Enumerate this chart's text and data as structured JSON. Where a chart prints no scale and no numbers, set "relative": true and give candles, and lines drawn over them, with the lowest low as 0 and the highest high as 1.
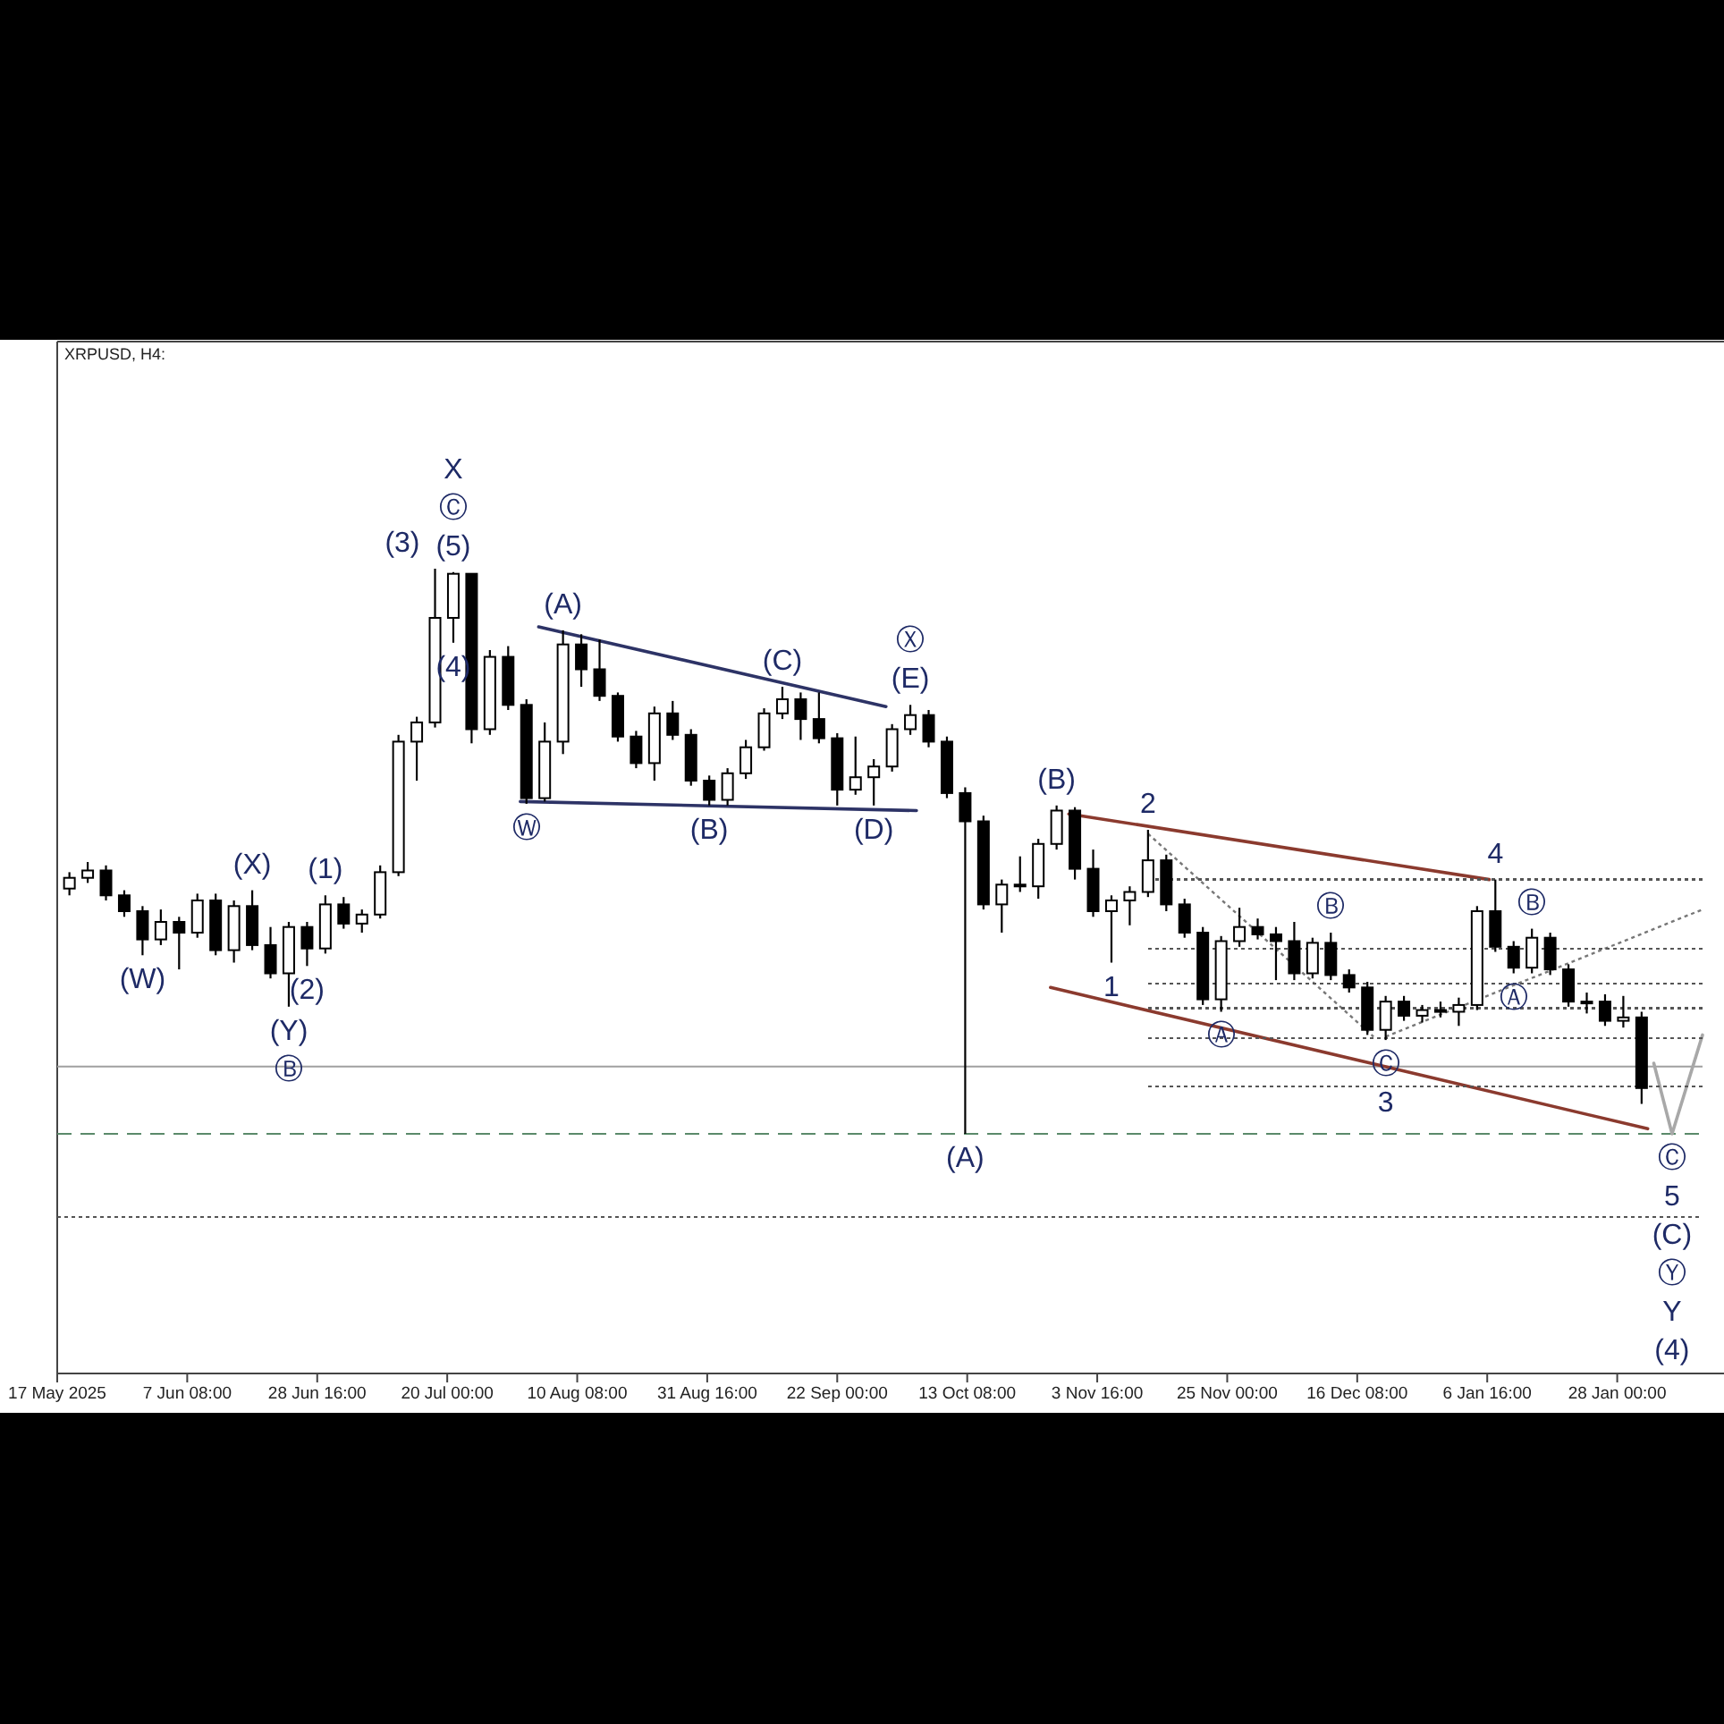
{
  "chart_data": {
    "type": "candlestick",
    "title": "XRPUSD, H4:",
    "relative": true,
    "color": "#000000",
    "xlim": [
      "2025-05-17",
      "2026-02-11"
    ],
    "xticks": [
      {
        "value": "2025-05-17T00:00",
        "label": "17 May 2025"
      },
      {
        "value": "2025-06-07T08:00",
        "label": "7 Jun 08:00"
      },
      {
        "value": "2025-06-28T16:00",
        "label": "28 Jun 16:00"
      },
      {
        "value": "2025-07-20T00:00",
        "label": "20 Jul 00:00"
      },
      {
        "value": "2025-08-10T08:00",
        "label": "10 Aug 08:00"
      },
      {
        "value": "2025-08-31T16:00",
        "label": "31 Aug 16:00"
      },
      {
        "value": "2025-09-22T00:00",
        "label": "22 Sep 00:00"
      },
      {
        "value": "2025-10-13T08:00",
        "label": "13 Oct 08:00"
      },
      {
        "value": "2025-11-03T16:00",
        "label": "3 Nov 16:00"
      },
      {
        "value": "2025-11-25T00:00",
        "label": "25 Nov 00:00"
      },
      {
        "value": "2025-12-16T08:00",
        "label": "16 Dec 08:00"
      },
      {
        "value": "2026-01-06T16:00",
        "label": "6 Jan 16:00"
      },
      {
        "value": "2026-01-28T00:00",
        "label": "28 Jan 00:00"
      }
    ],
    "x": [
      "2025-05-19",
      "2025-05-22",
      "2025-05-25",
      "2025-05-28",
      "2025-05-31",
      "2025-06-03",
      "2025-06-06",
      "2025-06-09",
      "2025-06-12",
      "2025-06-15",
      "2025-06-18",
      "2025-06-21",
      "2025-06-24",
      "2025-06-27",
      "2025-06-30",
      "2025-07-03",
      "2025-07-06",
      "2025-07-09",
      "2025-07-12",
      "2025-07-15",
      "2025-07-18",
      "2025-07-21",
      "2025-07-24",
      "2025-07-27",
      "2025-07-30",
      "2025-08-02",
      "2025-08-05",
      "2025-08-08",
      "2025-08-11",
      "2025-08-14",
      "2025-08-17",
      "2025-08-20",
      "2025-08-23",
      "2025-08-26",
      "2025-08-29",
      "2025-09-01",
      "2025-09-04",
      "2025-09-07",
      "2025-09-10",
      "2025-09-13",
      "2025-09-16",
      "2025-09-19",
      "2025-09-22",
      "2025-09-25",
      "2025-09-28",
      "2025-10-01",
      "2025-10-04",
      "2025-10-07",
      "2025-10-10",
      "2025-10-13",
      "2025-10-16",
      "2025-10-19",
      "2025-10-22",
      "2025-10-25",
      "2025-10-28",
      "2025-10-31",
      "2025-11-03",
      "2025-11-06",
      "2025-11-09",
      "2025-11-12",
      "2025-11-15",
      "2025-11-18",
      "2025-11-21",
      "2025-11-24",
      "2025-11-27",
      "2025-11-30",
      "2025-12-03",
      "2025-12-06",
      "2025-12-09",
      "2025-12-12",
      "2025-12-15",
      "2025-12-18",
      "2025-12-21",
      "2025-12-24",
      "2025-12-27",
      "2025-12-30",
      "2026-01-02",
      "2026-01-05",
      "2026-01-08",
      "2026-01-11",
      "2026-01-14",
      "2026-01-17",
      "2026-01-20",
      "2026-01-23",
      "2026-01-26",
      "2026-01-29",
      "2026-02-01"
    ],
    "ohlc": [
      [
        0.434,
        0.463,
        0.422,
        0.453
      ],
      [
        0.453,
        0.481,
        0.444,
        0.466
      ],
      [
        0.466,
        0.475,
        0.413,
        0.422
      ],
      [
        0.422,
        0.431,
        0.384,
        0.394
      ],
      [
        0.394,
        0.403,
        0.316,
        0.344
      ],
      [
        0.344,
        0.397,
        0.334,
        0.375
      ],
      [
        0.375,
        0.384,
        0.291,
        0.356
      ],
      [
        0.356,
        0.425,
        0.347,
        0.413
      ],
      [
        0.413,
        0.425,
        0.316,
        0.325
      ],
      [
        0.325,
        0.413,
        0.303,
        0.403
      ],
      [
        0.403,
        0.431,
        0.325,
        0.334
      ],
      [
        0.334,
        0.366,
        0.275,
        0.284
      ],
      [
        0.284,
        0.375,
        0.225,
        0.366
      ],
      [
        0.366,
        0.375,
        0.297,
        0.328
      ],
      [
        0.328,
        0.422,
        0.319,
        0.406
      ],
      [
        0.406,
        0.419,
        0.363,
        0.372
      ],
      [
        0.372,
        0.397,
        0.356,
        0.388
      ],
      [
        0.388,
        0.475,
        0.381,
        0.463
      ],
      [
        0.463,
        0.706,
        0.456,
        0.694
      ],
      [
        0.694,
        0.738,
        0.625,
        0.728
      ],
      [
        0.728,
        1.0,
        0.719,
        0.913
      ],
      [
        0.913,
        0.994,
        0.869,
        0.991
      ],
      [
        0.991,
        0.991,
        0.691,
        0.716
      ],
      [
        0.716,
        0.856,
        0.706,
        0.844
      ],
      [
        0.844,
        0.863,
        0.75,
        0.759
      ],
      [
        0.759,
        0.769,
        0.584,
        0.594
      ],
      [
        0.594,
        0.728,
        0.588,
        0.694
      ],
      [
        0.694,
        0.891,
        0.672,
        0.866
      ],
      [
        0.866,
        0.884,
        0.791,
        0.822
      ],
      [
        0.822,
        0.875,
        0.766,
        0.775
      ],
      [
        0.775,
        0.781,
        0.694,
        0.703
      ],
      [
        0.703,
        0.713,
        0.647,
        0.656
      ],
      [
        0.656,
        0.756,
        0.625,
        0.744
      ],
      [
        0.744,
        0.766,
        0.697,
        0.706
      ],
      [
        0.706,
        0.716,
        0.616,
        0.625
      ],
      [
        0.625,
        0.634,
        0.581,
        0.591
      ],
      [
        0.591,
        0.647,
        0.581,
        0.638
      ],
      [
        0.638,
        0.697,
        0.628,
        0.684
      ],
      [
        0.684,
        0.753,
        0.678,
        0.744
      ],
      [
        0.744,
        0.791,
        0.734,
        0.769
      ],
      [
        0.769,
        0.781,
        0.697,
        0.734
      ],
      [
        0.734,
        0.781,
        0.691,
        0.7
      ],
      [
        0.7,
        0.709,
        0.581,
        0.609
      ],
      [
        0.609,
        0.703,
        0.6,
        0.631
      ],
      [
        0.631,
        0.663,
        0.581,
        0.65
      ],
      [
        0.65,
        0.725,
        0.641,
        0.716
      ],
      [
        0.716,
        0.759,
        0.706,
        0.741
      ],
      [
        0.741,
        0.75,
        0.684,
        0.694
      ],
      [
        0.694,
        0.703,
        0.594,
        0.603
      ],
      [
        0.603,
        0.613,
        0.0,
        0.553
      ],
      [
        0.553,
        0.563,
        0.397,
        0.406
      ],
      [
        0.406,
        0.45,
        0.356,
        0.441
      ],
      [
        0.441,
        0.491,
        0.428,
        0.438
      ],
      [
        0.438,
        0.522,
        0.416,
        0.513
      ],
      [
        0.513,
        0.581,
        0.503,
        0.572
      ],
      [
        0.572,
        0.578,
        0.45,
        0.469
      ],
      [
        0.469,
        0.503,
        0.384,
        0.394
      ],
      [
        0.394,
        0.422,
        0.303,
        0.413
      ],
      [
        0.413,
        0.438,
        0.369,
        0.428
      ],
      [
        0.428,
        0.538,
        0.419,
        0.484
      ],
      [
        0.484,
        0.494,
        0.394,
        0.406
      ],
      [
        0.406,
        0.416,
        0.347,
        0.356
      ],
      [
        0.356,
        0.366,
        0.228,
        0.238
      ],
      [
        0.238,
        0.35,
        0.216,
        0.341
      ],
      [
        0.341,
        0.4,
        0.331,
        0.366
      ],
      [
        0.366,
        0.381,
        0.344,
        0.353
      ],
      [
        0.353,
        0.366,
        0.272,
        0.341
      ],
      [
        0.341,
        0.375,
        0.272,
        0.284
      ],
      [
        0.284,
        0.347,
        0.275,
        0.338
      ],
      [
        0.338,
        0.356,
        0.272,
        0.281
      ],
      [
        0.281,
        0.291,
        0.25,
        0.259
      ],
      [
        0.259,
        0.269,
        0.175,
        0.184
      ],
      [
        0.184,
        0.244,
        0.166,
        0.234
      ],
      [
        0.234,
        0.244,
        0.2,
        0.209
      ],
      [
        0.209,
        0.228,
        0.197,
        0.219
      ],
      [
        0.219,
        0.234,
        0.206,
        0.216
      ],
      [
        0.216,
        0.241,
        0.191,
        0.228
      ],
      [
        0.228,
        0.403,
        0.219,
        0.394
      ],
      [
        0.394,
        0.45,
        0.322,
        0.331
      ],
      [
        0.331,
        0.341,
        0.284,
        0.294
      ],
      [
        0.294,
        0.363,
        0.284,
        0.347
      ],
      [
        0.347,
        0.356,
        0.281,
        0.291
      ],
      [
        0.291,
        0.3,
        0.225,
        0.234
      ],
      [
        0.234,
        0.25,
        0.213,
        0.234
      ],
      [
        0.234,
        0.247,
        0.191,
        0.2
      ],
      [
        0.2,
        0.244,
        0.188,
        0.206
      ],
      [
        0.206,
        0.216,
        0.053,
        0.081
      ]
    ],
    "series": [
      {
        "type": "line",
        "x": [
          "2025-08-04",
          "2025-09-30"
        ],
        "values": [
          0.897,
          0.756
        ],
        "color": "#2d3366",
        "line_style": "solid"
      },
      {
        "type": "line",
        "x": [
          "2025-08-01",
          "2025-10-05"
        ],
        "values": [
          0.588,
          0.572
        ],
        "color": "#2d3366",
        "line_style": "solid"
      },
      {
        "type": "line",
        "x": [
          "2025-10-30",
          "2026-01-07"
        ],
        "values": [
          0.566,
          0.45
        ],
        "color": "#8b3a2e",
        "line_style": "solid"
      },
      {
        "type": "line",
        "x": [
          "2025-10-27",
          "2026-02-02"
        ],
        "values": [
          0.259,
          0.009
        ],
        "color": "#8b3a2e",
        "line_style": "solid"
      },
      {
        "type": "line",
        "x": [
          "2025-11-12",
          "2025-12-19"
        ],
        "values": [
          0.531,
          0.172
        ],
        "color": "#777777",
        "line_style": "dotted"
      },
      {
        "type": "line",
        "x": [
          "2025-12-21",
          "2026-02-11"
        ],
        "values": [
          0.172,
          0.397
        ],
        "color": "#777777",
        "line_style": "dotted"
      },
      {
        "type": "line",
        "x": [
          "2026-02-03",
          "2026-02-06",
          "2026-02-11"
        ],
        "values": [
          0.125,
          0.0,
          0.175
        ],
        "color": "#a8a8a8",
        "line_style": "solid"
      },
      {
        "type": "line",
        "x": [
          "2025-11-12",
          "2026-02-11"
        ],
        "values": [
          0.45,
          0.45
        ],
        "color": "#555555",
        "line_style": "dotted"
      },
      {
        "type": "line",
        "x": [
          "2025-11-12",
          "2026-02-11"
        ],
        "values": [
          0.328,
          0.328
        ],
        "color": "#555555",
        "line_style": "dotted"
      },
      {
        "type": "line",
        "x": [
          "2025-11-12",
          "2026-02-11"
        ],
        "values": [
          0.266,
          0.266
        ],
        "color": "#555555",
        "line_style": "dotted"
      },
      {
        "type": "line",
        "x": [
          "2025-11-12",
          "2026-02-11"
        ],
        "values": [
          0.222,
          0.222
        ],
        "color": "#555555",
        "line_style": "dotted"
      },
      {
        "type": "line",
        "x": [
          "2025-11-12",
          "2026-02-11"
        ],
        "values": [
          0.169,
          0.169
        ],
        "color": "#555555",
        "line_style": "dotted"
      },
      {
        "type": "line",
        "x": [
          "2025-11-12",
          "2026-02-11"
        ],
        "values": [
          0.084,
          0.084
        ],
        "color": "#555555",
        "line_style": "dotted"
      }
    ],
    "ref_lines": [
      {
        "axis": "y",
        "value": 0.119,
        "color": "#a0a0a0",
        "line_style": "solid"
      },
      {
        "axis": "y",
        "value": 0.0,
        "color": "#5a8a6a",
        "line_style": "dashed"
      },
      {
        "axis": "y",
        "value": -0.147,
        "color": "#555555",
        "line_style": "dotted"
      }
    ],
    "annotations": [
      {
        "text": "(W)",
        "x": "2025-05-31",
        "y": 0.316
      },
      {
        "text": "(X)",
        "x": "2025-06-18",
        "y": 0.431
      },
      {
        "text": "(Y)",
        "x": "2025-06-24",
        "y": 0.225
      },
      {
        "text": "Ⓑ",
        "x": "2025-06-24",
        "y": 0.225
      },
      {
        "text": "(1)",
        "x": "2025-06-30",
        "y": 0.422
      },
      {
        "text": "(2)",
        "x": "2025-06-27",
        "y": 0.297
      },
      {
        "text": "(5)",
        "x": "2025-07-21",
        "y": 0.994
      },
      {
        "text": "(3)",
        "x": "2025-07-18",
        "y": 1.0
      },
      {
        "text": "Ⓒ",
        "x": "2025-07-21",
        "y": 0.994
      },
      "X",
      {
        "text": "(4)",
        "x": "2025-07-21",
        "y": 0.869
      },
      {
        "text": "Ⓦ",
        "x": "2025-08-02",
        "y": 0.584
      },
      {
        "text": "(A)",
        "x": "2025-08-08",
        "y": 0.891
      },
      {
        "text": "(B)",
        "x": "2025-09-01",
        "y": 0.581
      },
      {
        "text": "(C)",
        "x": "2025-09-13",
        "y": 0.791
      },
      {
        "text": "(D)",
        "x": "2025-09-28",
        "y": 0.581
      },
      {
        "text": "(E)",
        "x": "2025-10-04",
        "y": 0.759
      },
      {
        "text": "Ⓧ",
        "x": "2025-10-04",
        "y": 0.759
      },
      {
        "text": "(A)",
        "x": "2025-10-13",
        "y": 0.0
      },
      {
        "text": "(B)",
        "x": "2025-10-28",
        "y": 0.581
      },
      {
        "text": "2",
        "x": "2025-11-12",
        "y": 0.538
      },
      {
        "text": "1",
        "x": "2025-11-06",
        "y": 0.303
      },
      {
        "text": "Ⓐ",
        "x": "2025-11-24",
        "y": 0.216
      },
      {
        "text": "Ⓑ",
        "x": "2025-12-12",
        "y": 0.356
      },
      {
        "text": "Ⓒ",
        "x": "2025-12-21",
        "y": 0.166
      },
      {
        "text": "3",
        "x": "2025-12-21",
        "y": 0.166
      },
      {
        "text": "4",
        "x": "2026-01-08",
        "y": 0.45
      },
      {
        "text": "Ⓐ",
        "x": "2026-01-11",
        "y": 0.284
      },
      {
        "text": "Ⓑ",
        "x": "2026-01-14",
        "y": 0.363
      },
      {
        "text": "Ⓒ",
        "x": "2026-02-06",
        "y": 0.0
      },
      {
        "text": "5",
        "x": "2026-02-06",
        "y": 0.0
      },
      "(C)",
      "Ⓨ",
      "Y",
      "(4)"
    ]
  }
}
